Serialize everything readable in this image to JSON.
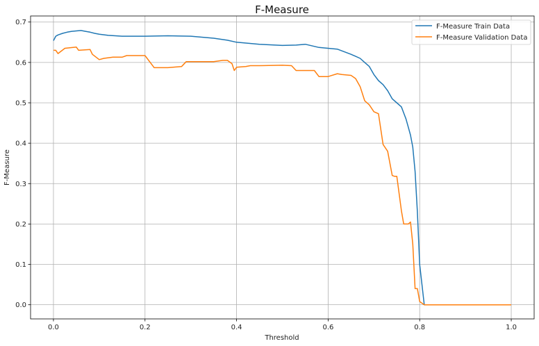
{
  "chart_data": {
    "type": "line",
    "title": "F-Measure",
    "xlabel": "Threshold",
    "ylabel": "F-Measure",
    "xlim": [
      -0.05,
      1.05
    ],
    "ylim": [
      -0.035,
      0.715
    ],
    "xticks": [
      "0.0",
      "0.2",
      "0.4",
      "0.6",
      "0.8",
      "1.0"
    ],
    "yticks": [
      "0.0",
      "0.1",
      "0.2",
      "0.3",
      "0.4",
      "0.5",
      "0.6",
      "0.7"
    ],
    "grid": true,
    "legend_position": "top-right",
    "colors": {
      "train": "#1f77b4",
      "validation": "#ff7f0e"
    },
    "series": [
      {
        "name": "F-Measure Train Data",
        "x": [
          0.0,
          0.005,
          0.01,
          0.02,
          0.03,
          0.04,
          0.05,
          0.06,
          0.07,
          0.08,
          0.09,
          0.1,
          0.12,
          0.15,
          0.2,
          0.25,
          0.3,
          0.35,
          0.38,
          0.4,
          0.45,
          0.5,
          0.53,
          0.55,
          0.58,
          0.6,
          0.62,
          0.65,
          0.66,
          0.67,
          0.68,
          0.69,
          0.7,
          0.71,
          0.72,
          0.73,
          0.74,
          0.75,
          0.76,
          0.765,
          0.77,
          0.775,
          0.78,
          0.785,
          0.79,
          0.795,
          0.8,
          0.805,
          0.81,
          1.0
        ],
        "y": [
          0.654,
          0.665,
          0.668,
          0.672,
          0.675,
          0.677,
          0.678,
          0.679,
          0.677,
          0.675,
          0.672,
          0.67,
          0.667,
          0.665,
          0.665,
          0.666,
          0.665,
          0.66,
          0.655,
          0.65,
          0.645,
          0.642,
          0.643,
          0.645,
          0.637,
          0.635,
          0.633,
          0.62,
          0.615,
          0.61,
          0.6,
          0.59,
          0.57,
          0.555,
          0.545,
          0.53,
          0.51,
          0.5,
          0.49,
          0.475,
          0.46,
          0.44,
          0.42,
          0.39,
          0.33,
          0.23,
          0.1,
          0.05,
          0.0,
          0.0
        ]
      },
      {
        "name": "F-Measure Validation Data",
        "x": [
          0.0,
          0.005,
          0.01,
          0.025,
          0.05,
          0.055,
          0.08,
          0.085,
          0.1,
          0.11,
          0.13,
          0.15,
          0.16,
          0.2,
          0.22,
          0.25,
          0.28,
          0.29,
          0.35,
          0.37,
          0.38,
          0.39,
          0.395,
          0.4,
          0.42,
          0.43,
          0.45,
          0.5,
          0.52,
          0.53,
          0.55,
          0.57,
          0.58,
          0.6,
          0.62,
          0.63,
          0.65,
          0.66,
          0.67,
          0.68,
          0.69,
          0.7,
          0.71,
          0.72,
          0.73,
          0.74,
          0.745,
          0.75,
          0.76,
          0.765,
          0.77,
          0.775,
          0.78,
          0.785,
          0.79,
          0.795,
          0.8,
          0.81,
          1.0
        ],
        "y": [
          0.63,
          0.63,
          0.622,
          0.635,
          0.638,
          0.63,
          0.632,
          0.62,
          0.607,
          0.61,
          0.613,
          0.613,
          0.617,
          0.617,
          0.587,
          0.587,
          0.59,
          0.602,
          0.602,
          0.605,
          0.605,
          0.597,
          0.58,
          0.588,
          0.59,
          0.592,
          0.592,
          0.593,
          0.592,
          0.58,
          0.58,
          0.58,
          0.565,
          0.565,
          0.572,
          0.57,
          0.568,
          0.56,
          0.54,
          0.505,
          0.495,
          0.478,
          0.473,
          0.397,
          0.38,
          0.32,
          0.318,
          0.318,
          0.233,
          0.2,
          0.2,
          0.2,
          0.205,
          0.15,
          0.04,
          0.04,
          0.008,
          0.0,
          0.0
        ]
      }
    ]
  }
}
